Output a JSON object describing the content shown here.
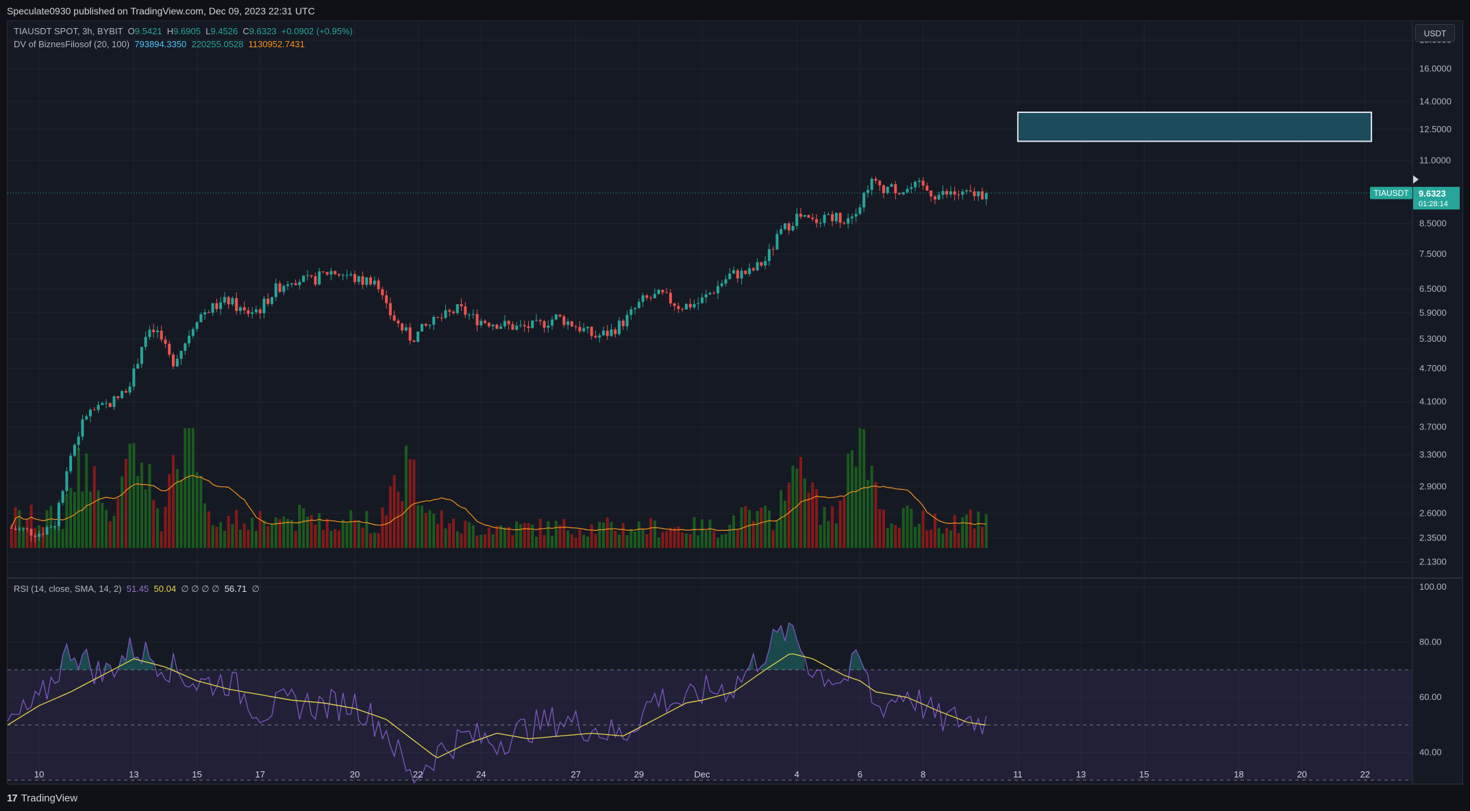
{
  "header": {
    "published": "Speculate0930 published on TradingView.com, Dec 09, 2023 22:31 UTC"
  },
  "legend_main": {
    "symbol": "TIAUSDT SPOT, 3h, BYBIT",
    "o_label": "O",
    "o": "9.5421",
    "h_label": "H",
    "h": "9.6905",
    "l_label": "L",
    "l": "9.4526",
    "c_label": "C",
    "c": "9.6323",
    "change": "+0.0902 (+0.95%)"
  },
  "legend_dv": {
    "name": "DV of BiznesFilosof (20, 100)",
    "v1": "793894.3350",
    "v2": "220255.0528",
    "v3": "1130952.7431"
  },
  "legend_rsi": {
    "name": "RSI (14, close, SMA, 14, 2)",
    "rsi": "51.45",
    "sma": "50.04",
    "empty": "∅ ∅ ∅ ∅",
    "extra": "56.71",
    "last": "∅"
  },
  "currency": "USDT",
  "price_tag": {
    "symbol": "TIAUSDT",
    "price": "9.6323",
    "countdown": "01:28:14"
  },
  "footer": {
    "brand": "TradingView"
  },
  "colors": {
    "up": "#26a69a",
    "down": "#ef5350",
    "rsi_line": "#7e57c2",
    "rsi_sma": "#e8d44d",
    "dv_line": "#f7931a",
    "zone": "#1c4b5c"
  },
  "chart_data": [
    {
      "type": "candlestick",
      "symbol": "TIAUSDT",
      "interval": "3h",
      "y_scale": "log",
      "ylim": [
        2.0,
        19.5
      ],
      "y_ticks": [
        "18.0000",
        "16.0000",
        "14.0000",
        "12.5000",
        "11.0000",
        "8.5000",
        "7.5000",
        "6.5000",
        "5.9000",
        "5.3000",
        "4.7000",
        "4.1000",
        "3.7000",
        "3.3000",
        "2.9000",
        "2.6000",
        "2.3500",
        "2.1300"
      ],
      "x_ticks": [
        "10",
        "13",
        "15",
        "17",
        "20",
        "22",
        "24",
        "27",
        "29",
        "Dec",
        "4",
        "6",
        "8",
        "11",
        "13",
        "15",
        "18",
        "20",
        "22"
      ],
      "x_tick_days": [
        0,
        3,
        5,
        7,
        10,
        12,
        14,
        17,
        19,
        21,
        24,
        26,
        28,
        31,
        33,
        35,
        38,
        40,
        42
      ],
      "x_range_days": [
        -1,
        43.5
      ],
      "price_path": [
        [
          -1,
          2.45
        ],
        [
          0,
          2.4
        ],
        [
          0.5,
          2.5
        ],
        [
          1.0,
          3.3
        ],
        [
          1.5,
          3.9
        ],
        [
          2.0,
          4.0
        ],
        [
          2.6,
          4.2
        ],
        [
          3.0,
          4.6
        ],
        [
          3.3,
          5.3
        ],
        [
          3.7,
          5.5
        ],
        [
          4.2,
          4.8
        ],
        [
          4.6,
          5.2
        ],
        [
          5.0,
          5.8
        ],
        [
          5.4,
          6.0
        ],
        [
          6.0,
          6.2
        ],
        [
          6.5,
          5.9
        ],
        [
          7.0,
          6.0
        ],
        [
          7.5,
          6.5
        ],
        [
          8.0,
          6.8
        ],
        [
          8.6,
          6.7
        ],
        [
          9.2,
          7.0
        ],
        [
          9.7,
          6.9
        ],
        [
          10.2,
          6.7
        ],
        [
          10.6,
          6.8
        ],
        [
          11.0,
          6.0
        ],
        [
          11.4,
          5.6
        ],
        [
          11.8,
          5.3
        ],
        [
          12.2,
          5.55
        ],
        [
          12.8,
          5.8
        ],
        [
          13.3,
          6.0
        ],
        [
          13.8,
          5.75
        ],
        [
          14.5,
          5.65
        ],
        [
          15.2,
          5.55
        ],
        [
          15.8,
          5.6
        ],
        [
          16.4,
          5.8
        ],
        [
          17.0,
          5.6
        ],
        [
          17.6,
          5.35
        ],
        [
          18.1,
          5.45
        ],
        [
          18.6,
          5.75
        ],
        [
          19.1,
          6.2
        ],
        [
          19.7,
          6.35
        ],
        [
          20.3,
          6.05
        ],
        [
          20.9,
          6.15
        ],
        [
          21.4,
          6.5
        ],
        [
          21.9,
          6.9
        ],
        [
          22.5,
          6.95
        ],
        [
          23.0,
          7.3
        ],
        [
          23.5,
          8.2
        ],
        [
          24.0,
          8.75
        ],
        [
          24.5,
          8.55
        ],
        [
          25.0,
          8.85
        ],
        [
          25.5,
          8.65
        ],
        [
          26.0,
          9.2
        ],
        [
          26.3,
          10.1
        ],
        [
          26.8,
          9.85
        ],
        [
          27.4,
          9.75
        ],
        [
          27.9,
          9.9
        ],
        [
          28.4,
          9.55
        ],
        [
          28.9,
          9.6
        ],
        [
          29.4,
          9.55
        ],
        [
          30.0,
          9.63
        ]
      ],
      "resistance_zone": {
        "x_start_days": 31.0,
        "x_end_days": 42.2,
        "y_low": 11.9,
        "y_high": 13.4
      }
    },
    {
      "type": "bar",
      "title": "DV of BiznesFilosof (20, 100)",
      "series": [
        {
          "values": "per-candle volume (estimated)"
        }
      ],
      "moving_average": "orange line",
      "peaks_days": [
        [
          1.5,
          0.6
        ],
        [
          3.0,
          1.0
        ],
        [
          4.7,
          1.0
        ],
        [
          11.6,
          0.6
        ],
        [
          24.0,
          0.55
        ],
        [
          26.0,
          0.85
        ]
      ]
    },
    {
      "type": "line",
      "title": "RSI (14, close, SMA, 14, 2)",
      "ylim": [
        29,
        103
      ],
      "y_ticks": [
        "100.00",
        "80.00",
        "60.00",
        "40.00"
      ],
      "bands": {
        "upper": 70,
        "middle": 50,
        "lower": 30
      },
      "rsi_path": [
        [
          -1,
          50
        ],
        [
          0,
          58
        ],
        [
          1.0,
          78
        ],
        [
          2.0,
          68
        ],
        [
          3.0,
          78
        ],
        [
          4.0,
          72
        ],
        [
          5.0,
          65
        ],
        [
          6.0,
          66
        ],
        [
          7.0,
          55
        ],
        [
          8.0,
          58
        ],
        [
          9.0,
          57
        ],
        [
          10.0,
          58
        ],
        [
          11.0,
          48
        ],
        [
          11.8,
          30
        ],
        [
          12.6,
          40
        ],
        [
          13.5,
          46
        ],
        [
          14.5,
          44
        ],
        [
          15.5,
          49
        ],
        [
          16.5,
          52
        ],
        [
          17.5,
          49
        ],
        [
          18.5,
          46
        ],
        [
          19.5,
          60
        ],
        [
          20.5,
          58
        ],
        [
          21.0,
          62
        ],
        [
          22.0,
          64
        ],
        [
          23.0,
          77
        ],
        [
          23.8,
          86
        ],
        [
          24.5,
          70
        ],
        [
          25.5,
          66
        ],
        [
          26.0,
          74
        ],
        [
          26.5,
          56
        ],
        [
          27.5,
          62
        ],
        [
          28.5,
          52
        ],
        [
          29.4,
          52
        ],
        [
          30.0,
          51.5
        ]
      ],
      "sma_path": [
        [
          -1,
          50
        ],
        [
          0,
          57
        ],
        [
          1.0,
          62
        ],
        [
          2.0,
          68
        ],
        [
          3.0,
          74
        ],
        [
          4.0,
          71
        ],
        [
          5.0,
          66
        ],
        [
          6.0,
          63
        ],
        [
          7.0,
          61
        ],
        [
          8.0,
          59
        ],
        [
          9.0,
          58
        ],
        [
          10.0,
          56
        ],
        [
          11.0,
          52
        ],
        [
          11.8,
          45
        ],
        [
          12.6,
          38
        ],
        [
          13.5,
          43
        ],
        [
          14.5,
          47
        ],
        [
          15.5,
          45
        ],
        [
          16.5,
          46
        ],
        [
          17.5,
          47
        ],
        [
          18.5,
          46
        ],
        [
          19.5,
          52
        ],
        [
          20.5,
          58
        ],
        [
          21.0,
          59
        ],
        [
          22.0,
          62
        ],
        [
          23.0,
          70
        ],
        [
          23.8,
          76
        ],
        [
          24.5,
          74
        ],
        [
          25.5,
          68
        ],
        [
          26.0,
          66
        ],
        [
          26.5,
          62
        ],
        [
          27.5,
          60
        ],
        [
          28.5,
          55
        ],
        [
          29.4,
          51
        ],
        [
          30.0,
          50
        ]
      ]
    }
  ]
}
